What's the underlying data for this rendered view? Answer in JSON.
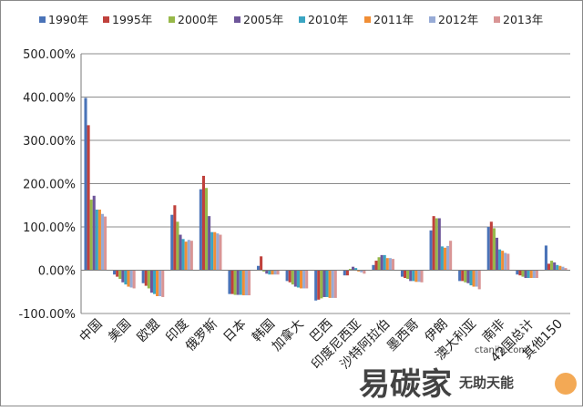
{
  "chart_data": {
    "type": "bar",
    "title": "",
    "xlabel": "",
    "ylabel": "",
    "ylim": [
      -100,
      500
    ],
    "yticks": [
      "500.00%",
      "400.00%",
      "300.00%",
      "200.00%",
      "100.00%",
      "0.00%",
      "-100.00%"
    ],
    "grid": true,
    "legend_position": "top",
    "categories": [
      "中国",
      "美国",
      "欧盟",
      "印度",
      "俄罗斯",
      "日本",
      "韩国",
      "加拿大",
      "巴西",
      "印度尼西亚",
      "沙特阿拉伯",
      "墨西哥",
      "伊朗",
      "澳大利亚",
      "南非",
      "42国总计",
      "其他150"
    ],
    "series": [
      {
        "name": "1990年",
        "color": "#4a73b8",
        "values": [
          398,
          -10,
          -30,
          128,
          187,
          -55,
          10,
          -25,
          -70,
          -12,
          12,
          -15,
          92,
          -25,
          100,
          -10,
          57
        ]
      },
      {
        "name": "1995年",
        "color": "#c0413c",
        "values": [
          335,
          -15,
          -36,
          150,
          218,
          -55,
          32,
          -28,
          -68,
          -12,
          22,
          -18,
          125,
          -25,
          112,
          -12,
          15
        ]
      },
      {
        "name": "2000年",
        "color": "#97b849",
        "values": [
          163,
          -20,
          -42,
          112,
          190,
          -57,
          -3,
          -33,
          -65,
          3,
          30,
          -20,
          120,
          -28,
          97,
          -15,
          22
        ]
      },
      {
        "name": "2005年",
        "color": "#6e569a",
        "values": [
          172,
          -28,
          -52,
          82,
          125,
          -57,
          -8,
          -38,
          -62,
          8,
          35,
          -25,
          120,
          -30,
          75,
          -18,
          18
        ]
      },
      {
        "name": "2010年",
        "color": "#3aa5c2",
        "values": [
          140,
          -33,
          -55,
          72,
          88,
          -57,
          -10,
          -40,
          -62,
          5,
          35,
          -25,
          55,
          -35,
          48,
          -18,
          12
        ]
      },
      {
        "name": "2011年",
        "color": "#f08e35",
        "values": [
          140,
          -38,
          -60,
          66,
          88,
          -58,
          -10,
          -42,
          -64,
          -3,
          28,
          -27,
          52,
          -38,
          45,
          -18,
          10
        ]
      },
      {
        "name": "2012年",
        "color": "#97abd6",
        "values": [
          130,
          -40,
          -60,
          70,
          85,
          -58,
          -10,
          -42,
          -64,
          -5,
          28,
          -27,
          56,
          -38,
          40,
          -18,
          8
        ]
      },
      {
        "name": "2013年",
        "color": "#d99595",
        "values": [
          124,
          -42,
          -62,
          68,
          82,
          -58,
          -10,
          -42,
          -64,
          -8,
          26,
          -28,
          68,
          -44,
          38,
          -18,
          5
        ]
      }
    ]
  },
  "watermark": {
    "main": "易碳家",
    "sub": "无助天能",
    "site": "ctanjia.com"
  }
}
